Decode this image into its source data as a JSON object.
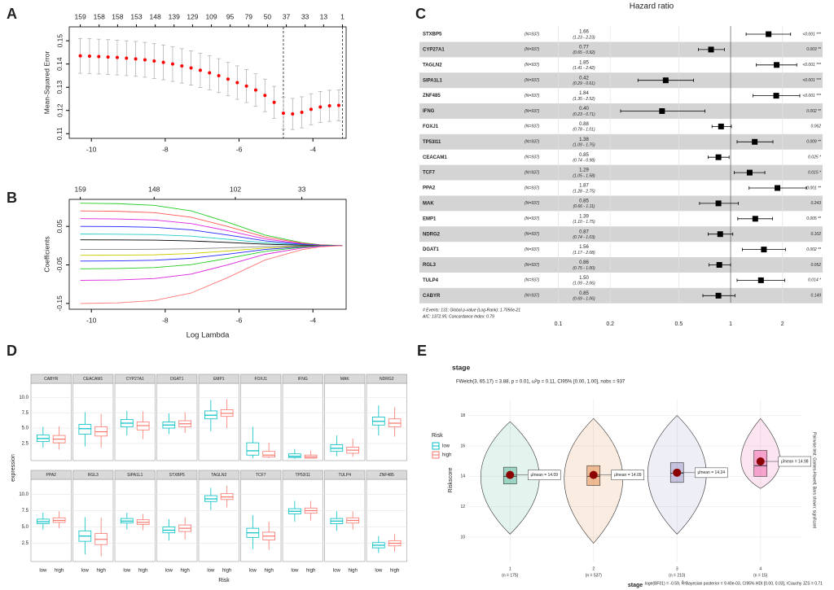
{
  "chart_data": [
    {
      "panel": "A",
      "type": "errorbar_line",
      "ylabel": "Mean-Squared Error",
      "color": "#ff0000",
      "x": [
        -10.3,
        -10.05,
        -9.8,
        -9.55,
        -9.3,
        -9.05,
        -8.8,
        -8.55,
        -8.3,
        -8.05,
        -7.8,
        -7.55,
        -7.3,
        -7.05,
        -6.8,
        -6.55,
        -6.3,
        -6.05,
        -5.8,
        -5.55,
        -5.3,
        -5.05,
        -4.8,
        -4.55,
        -4.3,
        -4.05,
        -3.8,
        -3.55,
        -3.3
      ],
      "values": [
        0.1435,
        0.1434,
        0.1432,
        0.143,
        0.1428,
        0.1425,
        0.1422,
        0.1418,
        0.1413,
        0.1407,
        0.14,
        0.1392,
        0.1383,
        0.1373,
        0.1362,
        0.135,
        0.1335,
        0.132,
        0.1305,
        0.1288,
        0.1265,
        0.1235,
        0.1188,
        0.1185,
        0.1192,
        0.1205,
        0.1215,
        0.122,
        0.1222
      ],
      "errors": [
        0.0075,
        0.0075,
        0.0075,
        0.0075,
        0.0075,
        0.0075,
        0.0075,
        0.0075,
        0.0075,
        0.0075,
        0.0075,
        0.0074,
        0.0074,
        0.0074,
        0.0073,
        0.0073,
        0.0072,
        0.0072,
        0.0071,
        0.007,
        0.007,
        0.0069,
        0.0068,
        0.0067,
        0.0067,
        0.0067,
        0.0067,
        0.0067,
        0.0067
      ],
      "xlim": [
        -10.6,
        -3.1
      ],
      "xticks": [
        -10,
        -8,
        -6,
        -4
      ],
      "ylim": [
        0.108,
        0.156
      ],
      "yticks": [
        0.11,
        0.12,
        0.13,
        0.14,
        0.15
      ],
      "x2ticks": [
        {
          "value": -10.3,
          "label": "159"
        },
        {
          "value": -9.79,
          "label": "158"
        },
        {
          "value": -9.29,
          "label": "158"
        },
        {
          "value": -8.78,
          "label": "153"
        },
        {
          "value": -8.27,
          "label": "148"
        },
        {
          "value": -7.76,
          "label": "139"
        },
        {
          "value": -7.26,
          "label": "129"
        },
        {
          "value": -6.75,
          "label": "109"
        },
        {
          "value": -6.24,
          "label": "95"
        },
        {
          "value": -5.74,
          "label": "79"
        },
        {
          "value": -5.23,
          "label": "50"
        },
        {
          "value": -4.72,
          "label": "37"
        },
        {
          "value": -4.21,
          "label": "33"
        },
        {
          "value": -3.71,
          "label": "13"
        },
        {
          "value": -3.2,
          "label": "1"
        }
      ],
      "vlines": [
        -4.8,
        -3.2
      ]
    },
    {
      "panel": "B",
      "type": "line",
      "xlabel": "Log Lambda",
      "ylabel": "Coefficients",
      "x": [
        -10.3,
        -9.3,
        -8.3,
        -7.3,
        -6.3,
        -5.3,
        -4.3,
        -3.8,
        -3.2
      ],
      "series": [
        {
          "color": "#22cc22",
          "values": [
            0.11,
            0.1089,
            0.1045,
            0.0902,
            0.0605,
            0.0275,
            0.0077,
            0.0022,
            0
          ]
        },
        {
          "color": "#ff5555",
          "values": [
            0.09,
            0.0891,
            0.0855,
            0.0738,
            0.0495,
            0.0225,
            0.0063,
            0.0018,
            0
          ]
        },
        {
          "color": "#dd22dd",
          "values": [
            0.07,
            0.0693,
            0.0665,
            0.0574,
            0.0385,
            0.0175,
            0.0049,
            0.0014,
            0
          ]
        },
        {
          "color": "#2222ff",
          "values": [
            0.05,
            0.0495,
            0.0475,
            0.041,
            0.0275,
            0.0125,
            0.0035,
            0.001,
            0
          ]
        },
        {
          "color": "#22cccc",
          "values": [
            0.03,
            0.0297,
            0.0285,
            0.0246,
            0.0165,
            0.0075,
            0.0021,
            0.0006,
            0
          ]
        },
        {
          "color": "#000000",
          "values": [
            0.015,
            0.0149,
            0.0143,
            0.0123,
            0.0083,
            0.0038,
            0.0011,
            0.0003,
            0
          ]
        },
        {
          "color": "#888888",
          "values": [
            -0.01,
            -0.0099,
            -0.0095,
            -0.0082,
            -0.0055,
            -0.0025,
            -0.0007,
            -0.0002,
            0
          ]
        },
        {
          "color": "#cccc00",
          "values": [
            -0.025,
            -0.0248,
            -0.0238,
            -0.0205,
            -0.0138,
            -0.0063,
            -0.0018,
            -0.0005,
            0
          ]
        },
        {
          "color": "#2222ff",
          "values": [
            -0.04,
            -0.0396,
            -0.038,
            -0.0328,
            -0.022,
            -0.01,
            -0.0028,
            -0.0008,
            0
          ]
        },
        {
          "color": "#22cc22",
          "values": [
            -0.06,
            -0.0594,
            -0.057,
            -0.0492,
            -0.033,
            -0.015,
            -0.0042,
            -0.0012,
            0
          ]
        },
        {
          "color": "#dd22dd",
          "values": [
            -0.09,
            -0.0891,
            -0.0855,
            -0.0738,
            -0.0495,
            -0.0225,
            -0.0063,
            -0.0018,
            0
          ]
        },
        {
          "color": "#ff7777",
          "values": [
            -0.15,
            -0.1485,
            -0.1425,
            -0.123,
            -0.0825,
            -0.0375,
            -0.0105,
            -0.003,
            0
          ]
        }
      ],
      "xlim": [
        -10.6,
        -3.1
      ],
      "xticks": [
        -10,
        -8,
        -6,
        -4
      ],
      "ylim": [
        -0.165,
        0.12
      ],
      "yticks": [
        0.05,
        -0.05,
        -0.15
      ],
      "x2ticks": [
        {
          "value": -10.3,
          "label": "159"
        },
        {
          "value": -8.3,
          "label": "148"
        },
        {
          "value": -6.1,
          "label": "102"
        },
        {
          "value": -4.3,
          "label": "33"
        }
      ]
    },
    {
      "panel": "C",
      "type": "forest",
      "title": "Hazard ratio",
      "color": "#000000",
      "log_scale": true,
      "categories": [
        "STXBP5",
        "CYP27A1",
        "TAGLN2",
        "SIPA1L1",
        "ZNF485",
        "IFNG",
        "FOXJ1",
        "TP53I11",
        "CEACAM1",
        "TCF7",
        "PPA2",
        "MAK",
        "EMP1",
        "NDRG2",
        "DGAT1",
        "RGL3",
        "TULP4",
        "CABYR"
      ],
      "n_labels": [
        "(N=937)",
        "(N=937)",
        "(N=937)",
        "(N=937)",
        "(N=937)",
        "(N=937)",
        "(N=937)",
        "(N=937)",
        "(N=937)",
        "(N=937)",
        "(N=937)",
        "(N=937)",
        "(N=937)",
        "(N=937)",
        "(N=937)",
        "(N=937)",
        "(N=937)",
        "(N=937)"
      ],
      "values": [
        1.66,
        0.77,
        1.85,
        0.42,
        1.84,
        0.4,
        0.88,
        1.38,
        0.85,
        1.29,
        1.87,
        0.85,
        1.39,
        0.87,
        1.56,
        0.86,
        1.5,
        0.85
      ],
      "value_labels": [
        "1.66",
        "0.77",
        "1.85",
        "0.42",
        "1.84",
        "0.40",
        "0.88",
        "1.38",
        "0.85",
        "1.29",
        "1.87",
        "0.85",
        "1.39",
        "0.87",
        "1.56",
        "0.86",
        "1.50",
        "0.85"
      ],
      "lower": [
        1.23,
        0.65,
        1.41,
        0.29,
        1.35,
        0.23,
        0.78,
        1.09,
        0.74,
        1.05,
        1.28,
        0.66,
        1.1,
        0.74,
        1.17,
        0.75,
        1.09,
        0.69
      ],
      "upper": [
        2.23,
        0.92,
        2.42,
        0.61,
        2.52,
        0.71,
        1.01,
        1.76,
        0.98,
        1.58,
        2.75,
        1.11,
        1.75,
        1.03,
        2.08,
        1.0,
        2.06,
        1.06
      ],
      "ci_labels": [
        "(1.23 - 2.23)",
        "(0.65 - 0.92)",
        "(1.41 - 2.42)",
        "(0.29 - 0.61)",
        "(1.35 - 2.52)",
        "(0.23 - 0.71)",
        "(0.78 - 1.01)",
        "(1.09 - 1.76)",
        "(0.74 - 0.98)",
        "(1.05 - 1.58)",
        "(1.28 - 2.75)",
        "(0.66 - 1.11)",
        "(1.10 - 1.75)",
        "(0.74 - 1.03)",
        "(1.17 - 2.08)",
        "(0.75 - 1.00)",
        "(1.09 - 2.06)",
        "(0.69 - 1.06)"
      ],
      "p_labels": [
        "<0.001 ***",
        "0.003 **",
        "<0.001 ***",
        "<0.001 ***",
        "<0.001 ***",
        "0.002 **",
        "0.062",
        "0.009 **",
        "0.025 *",
        "0.015 *",
        "0.001 **",
        "0.243",
        "0.005 **",
        "0.102",
        "0.002 **",
        "0.052",
        "0.014 *",
        "0.149"
      ],
      "footnotes": [
        "# Events: 131; Global p-value (Log-Rank): 1.7056e-21",
        "AIC: 1372.95; Concordance Index: 0.79"
      ],
      "xlim": [
        0.08,
        3
      ],
      "xticks": [
        0.1,
        0.2,
        0.5,
        1,
        2
      ]
    },
    {
      "panel": "D",
      "type": "boxplot",
      "xlabel": "Risk",
      "ylabel": "expression",
      "legend_title": "Risk",
      "categories": [
        "CABYR",
        "CEACAM1",
        "CYP27A1",
        "DGAT1",
        "EMP1",
        "FOXJ1",
        "IFNG",
        "MAK",
        "NDRG2",
        "PPA2",
        "RGL3",
        "SIPA1L1",
        "STXBP5",
        "TAGLN2",
        "TCF7",
        "TP53I11",
        "TULP4",
        "ZNF485"
      ],
      "series": [
        {
          "name": "low",
          "color": "#00BFC4",
          "boxes": [
            [
              1.8,
              2.8,
              3.3,
              3.9,
              5.2
            ],
            [
              2.0,
              4.0,
              4.9,
              5.6,
              7.6
            ],
            [
              3.8,
              5.2,
              5.8,
              6.4,
              7.8
            ],
            [
              4.0,
              5.0,
              5.5,
              6.0,
              7.4
            ],
            [
              4.5,
              6.5,
              7.1,
              7.8,
              9.6
            ],
            [
              0.1,
              0.6,
              1.3,
              2.6,
              5.2
            ],
            [
              0.0,
              0.2,
              0.4,
              0.8,
              1.6
            ],
            [
              0.4,
              1.2,
              1.7,
              2.3,
              3.8
            ],
            [
              3.8,
              5.5,
              6.1,
              6.8,
              8.7
            ],
            [
              4.6,
              5.5,
              5.8,
              6.2,
              7.2
            ],
            [
              0.8,
              2.8,
              3.6,
              4.4,
              6.5
            ],
            [
              4.6,
              5.6,
              5.9,
              6.3,
              7.2
            ],
            [
              2.9,
              4.1,
              4.5,
              5.0,
              6.2
            ],
            [
              7.6,
              8.9,
              9.3,
              9.8,
              11.0
            ],
            [
              1.6,
              3.4,
              4.1,
              4.8,
              6.8
            ],
            [
              5.8,
              7.0,
              7.4,
              7.8,
              9.0
            ],
            [
              4.4,
              5.5,
              5.9,
              6.3,
              7.4
            ],
            [
              1.0,
              1.8,
              2.2,
              2.6,
              3.6
            ]
          ]
        },
        {
          "name": "high",
          "color": "#F8766D",
          "boxes": [
            [
              1.5,
              2.6,
              3.2,
              3.8,
              5.3
            ],
            [
              1.8,
              3.7,
              4.4,
              5.2,
              7.3
            ],
            [
              3.2,
              4.7,
              5.4,
              6.0,
              7.7
            ],
            [
              4.2,
              5.2,
              5.7,
              6.2,
              7.6
            ],
            [
              5.0,
              6.9,
              7.4,
              8.0,
              9.7
            ],
            [
              0.1,
              0.3,
              0.6,
              1.2,
              2.6
            ],
            [
              0.0,
              0.1,
              0.3,
              0.6,
              1.3
            ],
            [
              0.3,
              0.9,
              1.4,
              1.9,
              3.3
            ],
            [
              3.6,
              5.2,
              5.8,
              6.5,
              8.4
            ],
            [
              4.8,
              5.7,
              6.0,
              6.4,
              7.4
            ],
            [
              0.5,
              2.3,
              3.1,
              4.0,
              6.4
            ],
            [
              4.5,
              5.4,
              5.7,
              6.1,
              7.0
            ],
            [
              3.1,
              4.3,
              4.8,
              5.3,
              6.5
            ],
            [
              8.0,
              9.2,
              9.6,
              10.1,
              11.3
            ],
            [
              1.5,
              3.0,
              3.6,
              4.2,
              5.8
            ],
            [
              6.0,
              7.1,
              7.5,
              7.9,
              9.0
            ],
            [
              4.6,
              5.6,
              6.0,
              6.4,
              7.4
            ],
            [
              1.2,
              2.1,
              2.5,
              2.9,
              3.9
            ]
          ]
        }
      ],
      "ylim": [
        -0.3,
        12.3
      ],
      "yticks": [
        2.5,
        {
          "value": 5,
          "label": "5.0"
        },
        7.5,
        {
          "value": 10,
          "label": "10.0"
        }
      ]
    },
    {
      "panel": "E",
      "type": "violin_stats",
      "title": "stage",
      "subtitle": "FWelch(3, 65.17) = 3.88, p = 0.01, ω̂²p = 0.11, CI95% [0.00, 1.00], nobs = 937",
      "xlabel": "stage",
      "ylabel": "Riskscore",
      "side_note": "Pairwise test: Games-Howell; Bars shown: significant",
      "footer": "loge(BF01) = -0.59, R̂²Bayesian posterior = 9.40e-03, CI95% HDI [0.00, 0.03], rCauchy JZS = 0.71",
      "categories": [
        "1",
        "2",
        "3",
        "4"
      ],
      "n_labels": [
        "(n = 175)",
        "(n = 537)",
        "(n = 210)",
        "(n = 15)"
      ],
      "colors": [
        "#1B9E77",
        "#D95F02",
        "#7570B3",
        "#E7298A"
      ],
      "mean_color": "#8B0000",
      "values": [
        14.09,
        14.09,
        14.24,
        14.98
      ],
      "value_labels": [
        "μ̂mean = 14.09",
        "μ̂mean = 14.09",
        "μ̂mean = 14.24",
        "μ̂mean = 14.98"
      ],
      "boxes": [
        [
          13.5,
          14.0,
          14.6
        ],
        [
          13.4,
          14.0,
          14.7
        ],
        [
          13.6,
          14.2,
          14.9
        ],
        [
          14.0,
          14.7,
          15.7
        ]
      ],
      "ranges": [
        [
          10.2,
          17.6
        ],
        [
          9.6,
          17.8
        ],
        [
          10.2,
          18.0
        ],
        [
          13.2,
          17.8
        ]
      ],
      "ylim": [
        8.4,
        19.1
      ],
      "yticks": [
        10,
        12,
        14,
        16,
        18
      ]
    }
  ]
}
